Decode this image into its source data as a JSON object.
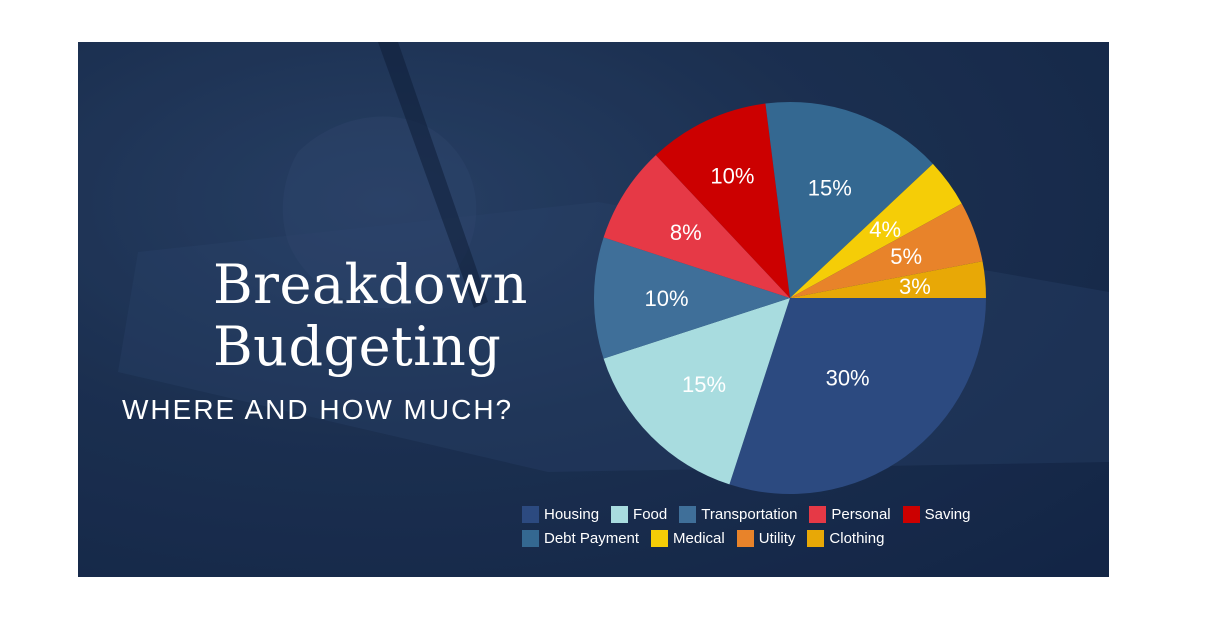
{
  "banner": {
    "title_line1": "Breakdown",
    "title_line2": "Budgeting",
    "subtitle": "WHERE AND HOW MUCH?"
  },
  "chart_data": {
    "type": "pie",
    "title": "",
    "categories": [
      "Housing",
      "Food",
      "Transportation",
      "Personal",
      "Saving",
      "Debt Payment",
      "Medical",
      "Utility",
      "Clothing"
    ],
    "values": [
      30,
      15,
      10,
      8,
      10,
      15,
      4,
      5,
      3
    ],
    "labels": [
      "30%",
      "15%",
      "10%",
      "8%",
      "10%",
      "15%",
      "4%",
      "5%",
      "3%"
    ],
    "colors": [
      "#2c4a80",
      "#a8dcdf",
      "#3f6f99",
      "#e63946",
      "#cc0000",
      "#346891",
      "#f5cd07",
      "#e8832a",
      "#e8a806"
    ],
    "start_angle_deg": 90,
    "direction": "clockwise",
    "legend_position": "bottom-right"
  }
}
